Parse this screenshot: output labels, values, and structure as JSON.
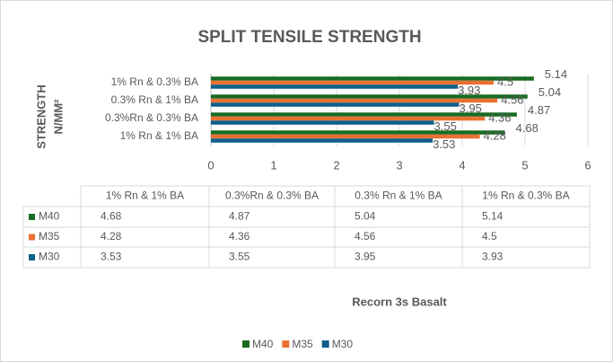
{
  "chart_data": {
    "type": "bar",
    "orientation": "horizontal",
    "title": "SPLIT TENSILE STRENGTH",
    "ylabel": [
      "STRENGTH",
      "N/MM²"
    ],
    "xlabel": "Recorn 3s Basalt",
    "categories": [
      "1% Rn & 1% BA",
      "0.3%Rn & 0.3% BA",
      "0.3% Rn & 1% BA",
      "1% Rn & 0.3% BA"
    ],
    "series": [
      {
        "name": "M40",
        "color": "#196b24",
        "values": [
          4.68,
          4.87,
          5.04,
          5.14
        ]
      },
      {
        "name": "M35",
        "color": "#e97132",
        "values": [
          4.28,
          4.36,
          4.56,
          4.5
        ]
      },
      {
        "name": "M30",
        "color": "#0f5f8a",
        "values": [
          3.53,
          3.55,
          3.95,
          3.93
        ]
      }
    ],
    "xlim": [
      0,
      6
    ],
    "xticks": [
      0,
      1,
      2,
      3,
      4,
      5,
      6
    ],
    "grid": true,
    "legend": "bottom",
    "data_table": true
  }
}
